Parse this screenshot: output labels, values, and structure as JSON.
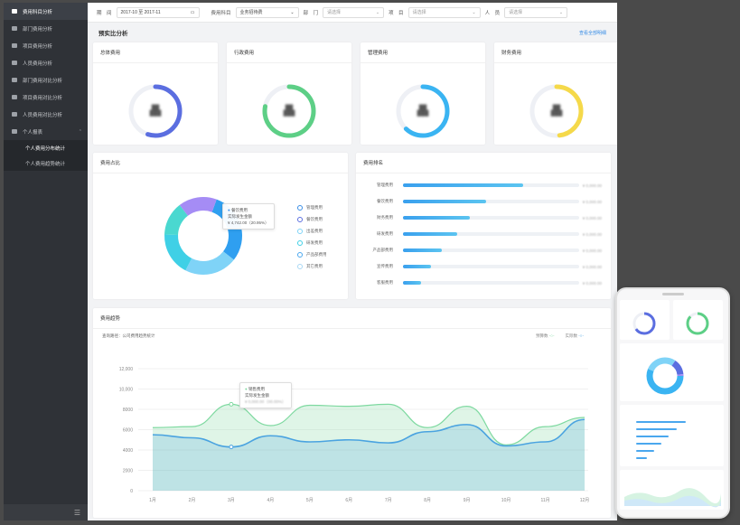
{
  "sidebar": {
    "items": [
      {
        "label": "费用科目分析",
        "active": true
      },
      {
        "label": "部门费用分析"
      },
      {
        "label": "项目费用分析"
      },
      {
        "label": "人员费用分析"
      },
      {
        "label": "部门费用对比分析"
      },
      {
        "label": "项目费用对比分析"
      },
      {
        "label": "人员费用对比分析"
      },
      {
        "label": "个人报表"
      }
    ],
    "subitems": [
      "个人费用分布统计",
      "个人费用趋势统计"
    ]
  },
  "filters": {
    "date_label": "期　间",
    "date_value": "2017-10 至 2017-11",
    "subject_label": "费用科目",
    "subject_value": "业务招待费",
    "dept_label": "部　门",
    "project_label": "项　目",
    "person_label": "人　员",
    "placeholder": "请选择"
  },
  "budget_section": {
    "title": "预实比分析",
    "link": "查看全部明细"
  },
  "stat_cards": [
    {
      "title": "总体费用",
      "color": "#5b6ee0"
    },
    {
      "title": "行政费用",
      "color": "#5dcf86"
    },
    {
      "title": "管理费用",
      "color": "#3ab4f2"
    },
    {
      "title": "财务费用",
      "color": "#f5d94a"
    }
  ],
  "share_card": {
    "title": "费用占比",
    "legend": [
      "管理费用",
      "餐饮费用",
      "出差费用",
      "研发费用",
      "产品部费用",
      "其它费用"
    ],
    "tooltip_title": "餐饮费用",
    "tooltip_sub": "实际发生金额",
    "tooltip_value": "¥ 4,742.00（20.95%）"
  },
  "rank_card": {
    "title": "费用排名",
    "rows": [
      {
        "label": "管理费用",
        "fill": 0.68
      },
      {
        "label": "餐饮费用",
        "fill": 0.47
      },
      {
        "label": "财务费用",
        "fill": 0.38
      },
      {
        "label": "研发费用",
        "fill": 0.31
      },
      {
        "label": "产品部费用",
        "fill": 0.22
      },
      {
        "label": "宣传费用",
        "fill": 0.16
      },
      {
        "label": "客服费用",
        "fill": 0.1
      }
    ]
  },
  "trend_card": {
    "title": "费用趋势",
    "subtitle": "查询路径：公司费用趋势统计",
    "legend_budget": "预算数",
    "legend_actual": "实际数",
    "tooltip_title": "销售费用",
    "tooltip_sub": "实际发生金额"
  },
  "chart_data": {
    "type": "area",
    "x": [
      "1月",
      "2月",
      "3月",
      "4月",
      "5月",
      "6月",
      "7月",
      "8月",
      "9月",
      "10月",
      "11月",
      "12月"
    ],
    "ylim": [
      0,
      12000
    ],
    "yticks": [
      "0",
      "2000",
      "4000",
      "6000",
      "8000",
      "10,000",
      "12,000"
    ],
    "series": [
      {
        "name": "预算数",
        "color": "#7ed9a0",
        "values": [
          6200,
          6300,
          8500,
          6400,
          8400,
          8300,
          8500,
          6200,
          8300,
          4500,
          6300,
          7200
        ]
      },
      {
        "name": "实际数",
        "color": "#4aa3e0",
        "values": [
          5500,
          5200,
          4300,
          5400,
          4800,
          5000,
          4700,
          5800,
          6500,
          4400,
          4800,
          7000
        ]
      }
    ]
  },
  "colors": {
    "accent": "#3a8ee6",
    "sidebar": "#2f3237"
  }
}
